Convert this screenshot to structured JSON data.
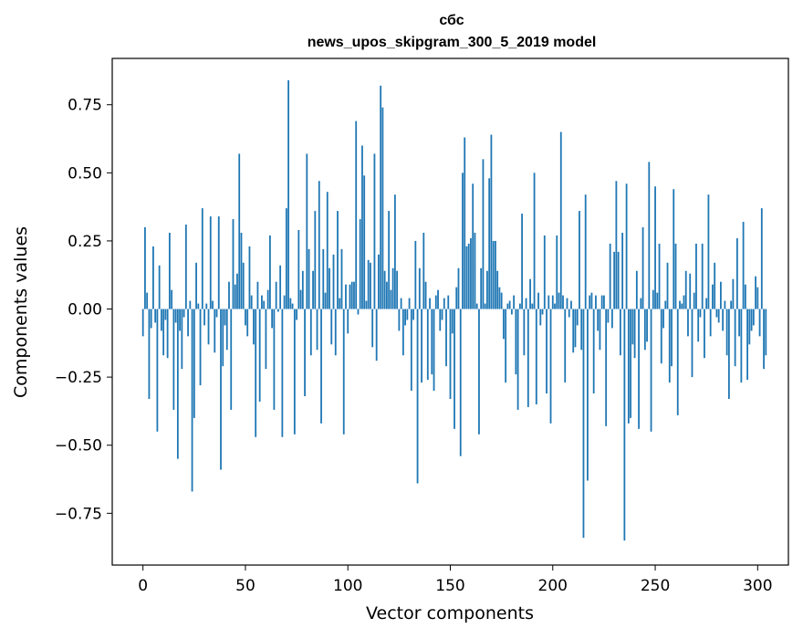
{
  "chart_data": {
    "type": "bar",
    "title_line1": "сбс",
    "title_line2": "news_upos_skipgram_300_5_2019 model",
    "xlabel": "Vector components",
    "ylabel": "Components values",
    "xlim": [
      -15,
      315
    ],
    "ylim": [
      -0.94,
      0.92
    ],
    "xticks": [
      0,
      50,
      100,
      150,
      200,
      250,
      300
    ],
    "xtick_labels": [
      "0",
      "50",
      "100",
      "150",
      "200",
      "250",
      "300"
    ],
    "yticks": [
      -0.75,
      -0.5,
      -0.25,
      0.0,
      0.25,
      0.5,
      0.75
    ],
    "ytick_labels": [
      "−0.75",
      "−0.50",
      "−0.25",
      "0.00",
      "0.25",
      "0.50",
      "0.75"
    ],
    "bar_color": "#1f77b4",
    "values": [
      -0.1,
      0.3,
      0.06,
      -0.33,
      -0.07,
      0.23,
      -0.05,
      -0.45,
      0.16,
      -0.08,
      -0.17,
      -0.04,
      -0.18,
      0.28,
      0.07,
      -0.37,
      -0.05,
      -0.55,
      -0.08,
      -0.22,
      -0.03,
      0.31,
      -0.1,
      0.03,
      -0.67,
      -0.4,
      0.17,
      0.02,
      -0.28,
      0.37,
      -0.06,
      0.02,
      -0.13,
      0.34,
      0.03,
      -0.16,
      -0.03,
      0.34,
      -0.59,
      -0.21,
      -0.06,
      -0.15,
      0.1,
      -0.37,
      0.33,
      0.09,
      0.13,
      0.57,
      0.28,
      0.17,
      -0.06,
      -0.1,
      0.23,
      0.05,
      -0.13,
      -0.47,
      0.1,
      -0.34,
      0.05,
      0.03,
      -0.22,
      0.07,
      0.27,
      -0.07,
      -0.37,
      0.1,
      -0.01,
      0.16,
      -0.47,
      0.05,
      0.37,
      0.84,
      0.04,
      0.02,
      -0.46,
      -0.04,
      0.29,
      0.07,
      0.14,
      -0.32,
      0.57,
      0.22,
      -0.17,
      0.14,
      0.36,
      -0.15,
      0.47,
      -0.42,
      0.22,
      0.06,
      0.43,
      0.15,
      -0.13,
      0.2,
      -0.17,
      0.36,
      0.04,
      0.22,
      -0.46,
      0.09,
      -0.09,
      0.09,
      0.1,
      0.1,
      0.69,
      -0.02,
      0.33,
      0.6,
      0.49,
      0.03,
      0.18,
      0.17,
      -0.14,
      0.57,
      -0.19,
      0.2,
      0.82,
      0.74,
      0.14,
      0.1,
      0.36,
      0.07,
      0.15,
      0.42,
      0.14,
      -0.08,
      0.04,
      -0.17,
      -0.06,
      -0.04,
      0.04,
      -0.3,
      -0.04,
      0.25,
      -0.64,
      0.15,
      -0.27,
      0.28,
      0.1,
      -0.26,
      0.04,
      -0.24,
      -0.3,
      0.05,
      0.07,
      -0.08,
      -0.04,
      0.04,
      -0.21,
      0.05,
      -0.33,
      -0.09,
      -0.44,
      0.08,
      0.15,
      -0.54,
      0.5,
      0.63,
      0.23,
      0.24,
      0.26,
      0.46,
      0.28,
      0.02,
      -0.46,
      0.15,
      0.55,
      0.02,
      0.14,
      0.48,
      0.64,
      0.25,
      0.25,
      0.14,
      0.08,
      0.06,
      -0.11,
      -0.27,
      0.02,
      0.03,
      -0.02,
      0.05,
      -0.24,
      -0.37,
      0.02,
      0.35,
      -0.17,
      0.04,
      -0.36,
      0.11,
      0.02,
      0.5,
      -0.35,
      0.06,
      -0.06,
      -0.02,
      0.27,
      -0.31,
      0.05,
      -0.42,
      0.05,
      0.02,
      0.27,
      0.06,
      0.65,
      0.05,
      -0.27,
      0.04,
      -0.03,
      0.03,
      -0.16,
      -0.14,
      -0.06,
      0.36,
      -0.15,
      -0.84,
      0.42,
      -0.63,
      0.05,
      0.06,
      -0.31,
      0.05,
      -0.08,
      -0.15,
      0.05,
      0.05,
      -0.43,
      -0.05,
      0.24,
      -0.07,
      0.21,
      0.47,
      0.21,
      -0.17,
      0.28,
      -0.85,
      0.46,
      -0.42,
      -0.4,
      -0.13,
      -0.18,
      0.14,
      -0.44,
      0.04,
      0.3,
      -0.15,
      -0.12,
      0.54,
      -0.45,
      0.07,
      0.45,
      0.06,
      0.24,
      -0.2,
      -0.07,
      0.03,
      0.17,
      -0.27,
      -0.21,
      0.44,
      0.24,
      -0.39,
      0.03,
      0.02,
      0.05,
      0.14,
      -0.1,
      0.13,
      -0.25,
      0.06,
      0.24,
      -0.12,
      -0.03,
      0.24,
      -0.18,
      0.04,
      0.42,
      -0.1,
      0.09,
      0.17,
      -0.03,
      -0.05,
      0.1,
      -0.08,
      0.03,
      -0.17,
      -0.33,
      0.03,
      0.11,
      -0.21,
      0.26,
      -0.1,
      -0.27,
      0.32,
      0.09,
      -0.26,
      -0.13,
      -0.08,
      -0.06,
      0.12,
      0.08,
      -0.1,
      0.37,
      -0.22,
      -0.17
    ]
  }
}
